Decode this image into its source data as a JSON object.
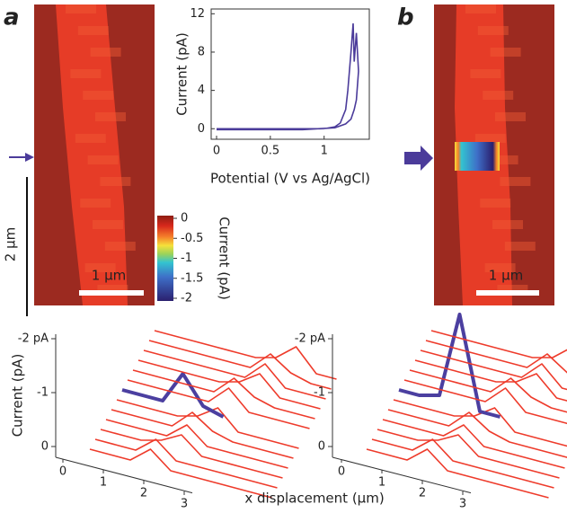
{
  "chart_data": [
    {
      "type": "image",
      "panel": "a",
      "scale_bars": [
        "1 μm",
        "2 μm"
      ]
    },
    {
      "type": "line",
      "xlabel": "Potential (V vs Ag/AgCl)",
      "ylabel": "Current (pA)",
      "x": [
        0,
        0.2,
        0.4,
        0.6,
        0.8,
        1.0,
        1.1,
        1.15,
        1.2,
        1.22,
        1.25,
        1.27,
        1.28,
        1.3,
        1.32,
        1.3,
        1.28,
        1.25,
        1.2,
        1.1,
        0.8,
        0.4,
        0
      ],
      "series": [
        {
          "color": "#4b3b9a",
          "values": [
            0,
            0,
            0,
            0,
            0,
            0,
            0.2,
            0.6,
            2,
            4,
            8,
            11,
            7,
            10,
            6,
            3,
            2,
            1,
            0.5,
            0.1,
            -0.1,
            -0.1,
            -0.1
          ]
        }
      ],
      "xlim": [
        -0.05,
        1.42
      ],
      "ylim": [
        -1.1,
        12.5
      ],
      "xticks": [
        0,
        0.5,
        1
      ],
      "yticks": [
        0,
        4,
        8,
        12
      ]
    },
    {
      "type": "colorbar",
      "label": "Current (pA)",
      "ylim": [
        -2,
        0
      ],
      "yticks": [
        0,
        -0.5,
        -1,
        -1.5,
        -2
      ]
    },
    {
      "type": "image",
      "panel": "b",
      "scale_bars": [
        "1 μm"
      ]
    },
    {
      "type": "waterfall",
      "ylabel": "Current (pA)",
      "yticks": [
        {
          "value": -2,
          "label": "-2 pA"
        },
        -1,
        0
      ],
      "xticks": [
        0,
        1,
        2,
        3
      ],
      "x": [
        0,
        0.5,
        1,
        1.5,
        2,
        2.5,
        3,
        3.5,
        4,
        4.5
      ],
      "series": [
        {
          "color": "#ee3b2b",
          "values": [
            0,
            0,
            0,
            -0.3,
            0,
            0,
            0,
            0,
            0,
            0
          ]
        },
        {
          "color": "#ee3b2b",
          "values": [
            0,
            0,
            0,
            -0.3,
            0,
            0,
            0,
            0,
            0,
            0
          ]
        },
        {
          "color": "#ee3b2b",
          "values": [
            0,
            0,
            0,
            -0.1,
            -0.3,
            0,
            0,
            0,
            0,
            0
          ]
        },
        {
          "color": "#ee3b2b",
          "values": [
            0,
            0,
            0,
            0,
            -0.3,
            0,
            0,
            0,
            0,
            0
          ]
        },
        {
          "color": "#ee3b2b",
          "values": [
            0,
            0,
            0,
            0,
            -0.35,
            -0.1,
            0,
            0,
            0,
            0
          ]
        },
        {
          "color": "#ee3b2b",
          "values": [
            0,
            0,
            0,
            0,
            -0.1,
            -0.35,
            0,
            0,
            0,
            0
          ]
        },
        {
          "color": "#4b3fa0",
          "values": [
            0,
            0,
            0,
            -0.6,
            -0.1,
            0,
            null,
            null,
            null,
            null
          ]
        },
        {
          "color": "#ee3b2b",
          "values": [
            0,
            0,
            0,
            0,
            0,
            -0.35,
            0,
            0,
            0,
            0
          ]
        },
        {
          "color": "#ee3b2b",
          "values": [
            0,
            0,
            0,
            0,
            0,
            -0.35,
            -0.1,
            0,
            0,
            0
          ]
        },
        {
          "color": "#ee3b2b",
          "values": [
            0,
            0,
            0,
            0,
            0,
            -0.1,
            -0.35,
            0,
            0,
            0
          ]
        },
        {
          "color": "#ee3b2b",
          "values": [
            0,
            0,
            0,
            0,
            0,
            0,
            -0.35,
            0,
            0,
            0
          ]
        },
        {
          "color": "#ee3b2b",
          "values": [
            0,
            0,
            0,
            0,
            0,
            0,
            -0.35,
            -0.1,
            0,
            0
          ]
        },
        {
          "color": "#ee3b2b",
          "values": [
            0,
            0,
            0,
            0,
            0,
            0,
            -0.1,
            -0.4,
            0,
            0
          ]
        }
      ]
    },
    {
      "type": "waterfall",
      "xlabel": "x displacement (μm)",
      "yticks": [
        {
          "value": -2,
          "label": "-2 pA"
        },
        -1,
        0
      ],
      "xticks": [
        0,
        1,
        2,
        3
      ],
      "x": [
        0,
        0.5,
        1,
        1.5,
        2,
        2.5,
        3,
        3.5,
        4,
        4.5
      ],
      "series": [
        {
          "color": "#ee3b2b",
          "values": [
            0,
            0,
            0,
            -0.3,
            0,
            0,
            0,
            0,
            0,
            0
          ]
        },
        {
          "color": "#ee3b2b",
          "values": [
            0,
            0,
            0,
            -0.3,
            0,
            0,
            0,
            0,
            0,
            0
          ]
        },
        {
          "color": "#ee3b2b",
          "values": [
            0,
            0,
            0,
            -0.1,
            -0.3,
            0,
            0,
            0,
            0,
            0
          ]
        },
        {
          "color": "#ee3b2b",
          "values": [
            0,
            0,
            0,
            0,
            -0.3,
            0,
            0,
            0,
            0,
            0
          ]
        },
        {
          "color": "#ee3b2b",
          "values": [
            0,
            0,
            0,
            0,
            -0.35,
            -0.1,
            0,
            0,
            0,
            0
          ]
        },
        {
          "color": "#ee3b2b",
          "values": [
            0,
            0,
            0,
            0,
            -0.1,
            -0.35,
            0,
            0,
            0,
            0
          ]
        },
        {
          "color": "#4b3fa0",
          "values": [
            0,
            0,
            -0.1,
            -1.7,
            0,
            0,
            null,
            null,
            null,
            null
          ]
        },
        {
          "color": "#ee3b2b",
          "values": [
            0,
            0,
            0,
            0,
            0,
            -0.35,
            0,
            0,
            0,
            0
          ]
        },
        {
          "color": "#ee3b2b",
          "values": [
            0,
            0,
            0,
            0,
            0,
            -0.35,
            -0.1,
            0,
            0,
            0
          ]
        },
        {
          "color": "#ee3b2b",
          "values": [
            0,
            0,
            0,
            0,
            0,
            -0.1,
            -0.35,
            0,
            0,
            0
          ]
        },
        {
          "color": "#ee3b2b",
          "values": [
            0,
            0,
            0,
            0,
            0,
            0,
            -0.35,
            0,
            0,
            0
          ]
        },
        {
          "color": "#ee3b2b",
          "values": [
            0,
            0,
            0,
            0,
            0,
            0,
            -0.35,
            -0.1,
            0,
            0
          ]
        },
        {
          "color": "#ee3b2b",
          "values": [
            0,
            0,
            0,
            0,
            0,
            0,
            -0.1,
            -0.4,
            0,
            0
          ]
        }
      ]
    }
  ]
}
